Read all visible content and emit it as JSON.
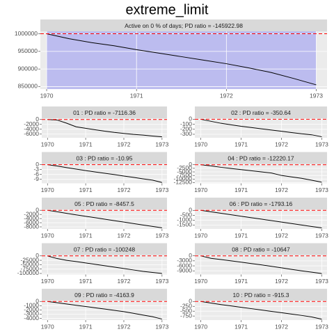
{
  "title": "extreme_limit",
  "chart_data": [
    {
      "type": "line",
      "title": "Active on 0 % of days; PD ratio =  -145922.98",
      "x": [
        1970,
        1970.25,
        1970.5,
        1970.75,
        1971,
        1971.25,
        1971.5,
        1971.75,
        1972,
        1972.25,
        1972.5,
        1972.75,
        1973
      ],
      "series": [
        {
          "color": "#000000",
          "values": [
            1000000,
            986000,
            975000,
            966000,
            955000,
            945000,
            935000,
            925000,
            915000,
            903000,
            890000,
            873000,
            855000
          ]
        }
      ],
      "xlim": [
        1969.93,
        1973.12
      ],
      "xticks": [
        1970,
        1971,
        1972,
        1973
      ],
      "ylim": [
        843000,
        1007000
      ],
      "yticks": [
        850000,
        900000,
        950000,
        1000000
      ],
      "reference_line": 1000000,
      "reference_color": "#ff0000",
      "shade": [
        1970,
        1973
      ],
      "shade_color": "#0000ff",
      "grid": true
    },
    {
      "type": "line",
      "title": "01 : PD ratio =  -7116.36",
      "x": [
        1970,
        1970.25,
        1970.5,
        1970.75,
        1971,
        1971.25,
        1971.5,
        1971.75,
        1972,
        1972.25,
        1972.5,
        1972.75,
        1973
      ],
      "series": [
        {
          "color": "#000000",
          "values": [
            0,
            -200,
            -1500,
            -3000,
            -3600,
            -4200,
            -4800,
            -5300,
            -5700,
            -6100,
            -6400,
            -6800,
            -7116
          ]
        }
      ],
      "xlim": [
        1969.85,
        1973.13
      ],
      "xticks": [
        1970,
        1971,
        1972,
        1973
      ],
      "ylim": [
        -7500,
        500
      ],
      "yticks": [
        -6000,
        -4000,
        -2000,
        0
      ],
      "reference_line": 0,
      "reference_color": "#ff0000",
      "grid": true
    },
    {
      "type": "line",
      "title": "02 : PD ratio =  -350.64",
      "x": [
        1970,
        1970.25,
        1970.5,
        1970.75,
        1971,
        1971.25,
        1971.5,
        1971.75,
        1972,
        1972.25,
        1972.5,
        1972.75,
        1973
      ],
      "series": [
        {
          "color": "#000000",
          "values": [
            0,
            -40,
            -80,
            -110,
            -140,
            -165,
            -190,
            -215,
            -240,
            -265,
            -290,
            -310,
            -350
          ]
        }
      ],
      "xlim": [
        1969.85,
        1973.13
      ],
      "xticks": [
        1970,
        1971,
        1972,
        1973
      ],
      "ylim": [
        -370,
        20
      ],
      "yticks": [
        -300,
        -200,
        -100,
        0
      ],
      "reference_line": 0,
      "reference_color": "#ff0000",
      "grid": true
    },
    {
      "type": "line",
      "title": "03 : PD ratio =  -10.95",
      "x": [
        1970,
        1970.25,
        1970.5,
        1970.75,
        1971,
        1971.25,
        1971.5,
        1971.75,
        1972,
        1972.25,
        1972.5,
        1972.75,
        1973
      ],
      "series": [
        {
          "color": "#000000",
          "values": [
            0,
            -0.8,
            -1.8,
            -2.7,
            -3.6,
            -4.5,
            -5.3,
            -6.1,
            -7,
            -7.8,
            -8.7,
            -9.5,
            -10.95
          ]
        }
      ],
      "xlim": [
        1969.85,
        1973.13
      ],
      "xticks": [
        1970,
        1971,
        1972,
        1973
      ],
      "ylim": [
        -11.5,
        0.5
      ],
      "yticks": [
        -9,
        -6,
        -3,
        0
      ],
      "reference_line": 0,
      "reference_color": "#ff0000",
      "grid": true
    },
    {
      "type": "line",
      "title": "04 : PD ratio =  -12220.17",
      "x": [
        1970,
        1970.25,
        1970.5,
        1970.75,
        1971,
        1971.25,
        1971.5,
        1971.75,
        1972,
        1972.25,
        1972.5,
        1972.75,
        1973
      ],
      "series": [
        {
          "color": "#000000",
          "values": [
            0,
            -800,
            -1800,
            -2600,
            -3400,
            -4200,
            -5000,
            -5800,
            -7500,
            -8500,
            -9500,
            -10800,
            -12220
          ]
        }
      ],
      "xlim": [
        1969.85,
        1973.13
      ],
      "xticks": [
        1970,
        1971,
        1972,
        1973
      ],
      "ylim": [
        -13000,
        600
      ],
      "yticks": [
        -12500,
        -10000,
        -7500,
        -5000,
        -2500,
        0
      ],
      "reference_line": 0,
      "reference_color": "#ff0000",
      "grid": true
    },
    {
      "type": "line",
      "title": "05 : PD ratio =  -8457.5",
      "x": [
        1970,
        1970.25,
        1970.5,
        1970.75,
        1971,
        1971.25,
        1971.5,
        1971.75,
        1972,
        1972.25,
        1972.5,
        1972.75,
        1973
      ],
      "series": [
        {
          "color": "#000000",
          "values": [
            0,
            -700,
            -1500,
            -2200,
            -2900,
            -3600,
            -4300,
            -5000,
            -5700,
            -6400,
            -7100,
            -7800,
            -8457
          ]
        }
      ],
      "xlim": [
        1969.85,
        1973.13
      ],
      "xticks": [
        1970,
        1971,
        1972,
        1973
      ],
      "ylim": [
        -9000,
        400
      ],
      "yticks": [
        -8000,
        -6000,
        -4000,
        -2000,
        0
      ],
      "reference_line": 0,
      "reference_color": "#ff0000",
      "grid": true
    },
    {
      "type": "line",
      "title": "06 : PD ratio =  -1793.16",
      "x": [
        1970,
        1970.25,
        1970.5,
        1970.75,
        1971,
        1971.25,
        1971.5,
        1971.75,
        1972,
        1972.25,
        1972.5,
        1972.75,
        1973
      ],
      "series": [
        {
          "color": "#000000",
          "values": [
            0,
            -150,
            -300,
            -450,
            -600,
            -750,
            -900,
            -1050,
            -1200,
            -1350,
            -1500,
            -1650,
            -1793
          ]
        }
      ],
      "xlim": [
        1969.85,
        1973.13
      ],
      "xticks": [
        1970,
        1971,
        1972,
        1973
      ],
      "ylim": [
        -1900,
        90
      ],
      "yticks": [
        -1500,
        -1000,
        -500,
        0
      ],
      "reference_line": 0,
      "reference_color": "#ff0000",
      "grid": true
    },
    {
      "type": "line",
      "title": "07 : PD ratio =  -100248",
      "x": [
        1970,
        1970.25,
        1970.5,
        1970.75,
        1971,
        1971.25,
        1971.5,
        1971.75,
        1972,
        1972.25,
        1972.5,
        1972.75,
        1973
      ],
      "series": [
        {
          "color": "#000000",
          "values": [
            0,
            -15000,
            -25000,
            -32000,
            -40000,
            -48000,
            -56000,
            -64000,
            -72000,
            -80000,
            -88000,
            -94000,
            -100248
          ]
        }
      ],
      "xlim": [
        1969.85,
        1973.13
      ],
      "xticks": [
        1970,
        1971,
        1972,
        1973
      ],
      "ylim": [
        -106000,
        5000
      ],
      "yticks": [
        -100000,
        -75000,
        -50000,
        -25000,
        0
      ],
      "reference_line": 0,
      "reference_color": "#ff0000",
      "grid": true
    },
    {
      "type": "line",
      "title": "08 : PD ratio =  -10647",
      "x": [
        1970,
        1970.25,
        1970.5,
        1970.75,
        1971,
        1971.25,
        1971.5,
        1971.75,
        1972,
        1972.25,
        1972.5,
        1972.75,
        1973
      ],
      "series": [
        {
          "color": "#000000",
          "values": [
            0,
            -1500,
            -2200,
            -3000,
            -3800,
            -4600,
            -5400,
            -6300,
            -7200,
            -8100,
            -9000,
            -9800,
            -10647
          ]
        }
      ],
      "xlim": [
        1969.85,
        1973.13
      ],
      "xticks": [
        1970,
        1971,
        1972,
        1973
      ],
      "ylim": [
        -11200,
        500
      ],
      "yticks": [
        -9000,
        -6000,
        -3000,
        0
      ],
      "reference_line": 0,
      "reference_color": "#ff0000",
      "grid": true
    },
    {
      "type": "line",
      "title": "09 : PD ratio =  -4163.9",
      "x": [
        1970,
        1970.25,
        1970.5,
        1970.75,
        1971,
        1971.25,
        1971.5,
        1971.75,
        1972,
        1972.25,
        1972.5,
        1972.75,
        1973
      ],
      "series": [
        {
          "color": "#000000",
          "values": [
            0,
            -300,
            -600,
            -900,
            -1200,
            -1500,
            -1800,
            -2100,
            -2400,
            -2800,
            -3200,
            -3600,
            -4164
          ]
        }
      ],
      "xlim": [
        1969.85,
        1973.13
      ],
      "xticks": [
        1970,
        1971,
        1972,
        1973
      ],
      "ylim": [
        -4400,
        200
      ],
      "yticks": [
        -4000,
        -3000,
        -2000,
        -1000,
        0
      ],
      "reference_line": 0,
      "reference_color": "#ff0000",
      "grid": true
    },
    {
      "type": "line",
      "title": "10 : PD ratio =  -915.3",
      "x": [
        1970,
        1970.25,
        1970.5,
        1970.75,
        1971,
        1971.25,
        1971.5,
        1971.75,
        1972,
        1972.25,
        1972.5,
        1972.75,
        1973
      ],
      "series": [
        {
          "color": "#000000",
          "values": [
            0,
            -80,
            -160,
            -230,
            -300,
            -370,
            -440,
            -510,
            -580,
            -650,
            -720,
            -800,
            -915
          ]
        }
      ],
      "xlim": [
        1969.85,
        1973.13
      ],
      "xticks": [
        1970,
        1971,
        1972,
        1973
      ],
      "ylim": [
        -960,
        45
      ],
      "yticks": [
        -750,
        -500,
        -250,
        0
      ],
      "reference_line": 0,
      "reference_color": "#ff0000",
      "grid": true
    }
  ]
}
